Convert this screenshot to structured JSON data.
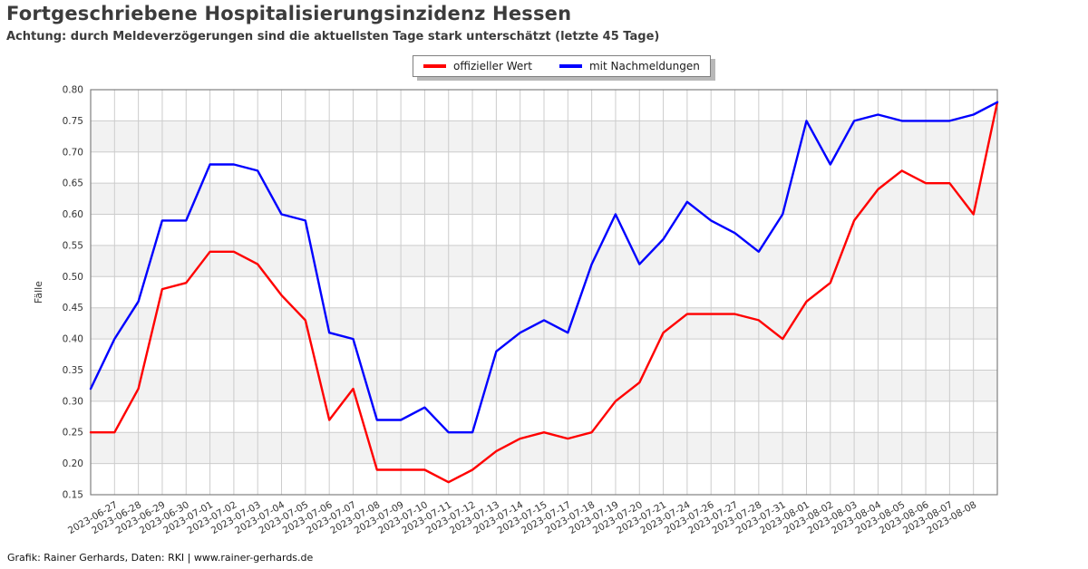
{
  "chart_data": {
    "type": "line",
    "title": "Fortgeschriebene Hospitalisierungsinzidenz Hessen",
    "subtitle": "Achtung: durch Meldeverzögerungen sind die aktuellsten Tage stark unterschätzt (letzte 45 Tage)",
    "ylabel": "Fälle",
    "footer": "Grafik: Rainer Gerhards, Daten: RKI | www.rainer-gerhards.de",
    "ylim": [
      0.15,
      0.8
    ],
    "ytick_step": 0.05,
    "grid": true,
    "legend_position": "top-center",
    "x_labels": [
      "",
      "2023-06-27",
      "2023-06-28",
      "2023-06-29",
      "2023-06-30",
      "2023-07-01",
      "2023-07-02",
      "2023-07-03",
      "2023-07-04",
      "2023-07-05",
      "2023-07-06",
      "2023-07-07",
      "2023-07-08",
      "2023-07-09",
      "2023-07-10",
      "2023-07-11",
      "2023-07-12",
      "2023-07-13",
      "2023-07-14",
      "2023-07-15",
      "2023-07-17",
      "2023-07-18",
      "2023-07-19",
      "2023-07-20",
      "2023-07-21",
      "2023-07-24",
      "2023-07-26",
      "2023-07-27",
      "2023-07-28",
      "2023-07-31",
      "2023-08-01",
      "2023-08-02",
      "2023-08-03",
      "2023-08-04",
      "2023-08-05",
      "2023-08-06",
      "2023-08-07",
      "2023-08-08",
      ""
    ],
    "series": [
      {
        "name": "offizieller Wert",
        "color": "#ff0000",
        "values": [
          0.25,
          0.25,
          0.32,
          0.48,
          0.49,
          0.54,
          0.54,
          0.52,
          0.47,
          0.43,
          0.27,
          0.32,
          0.19,
          0.19,
          0.19,
          0.17,
          0.19,
          0.22,
          0.24,
          0.25,
          0.24,
          0.25,
          0.3,
          0.33,
          0.41,
          0.44,
          0.44,
          0.44,
          0.43,
          0.4,
          0.46,
          0.49,
          0.59,
          0.64,
          0.67,
          0.65,
          0.65,
          0.6,
          0.78
        ]
      },
      {
        "name": "mit Nachmeldungen",
        "color": "#0000ff",
        "values": [
          0.32,
          0.4,
          0.46,
          0.59,
          0.59,
          0.68,
          0.68,
          0.67,
          0.6,
          0.59,
          0.41,
          0.4,
          0.27,
          0.27,
          0.29,
          0.25,
          0.25,
          0.38,
          0.41,
          0.43,
          0.41,
          0.52,
          0.6,
          0.52,
          0.56,
          0.62,
          0.59,
          0.57,
          0.54,
          0.6,
          0.75,
          0.68,
          0.75,
          0.76,
          0.75,
          0.75,
          0.75,
          0.76,
          0.78
        ]
      }
    ],
    "style": {
      "band_color": "#f2f2f2",
      "grid_color": "#cccccc",
      "spine_color": "#808080",
      "tick_label_color": "#333333",
      "title_color": "#3c3c3c",
      "legend_border_color": "#7f7f7f",
      "legend_shadow_color": "#b8b8b8",
      "background": "#ffffff"
    }
  }
}
